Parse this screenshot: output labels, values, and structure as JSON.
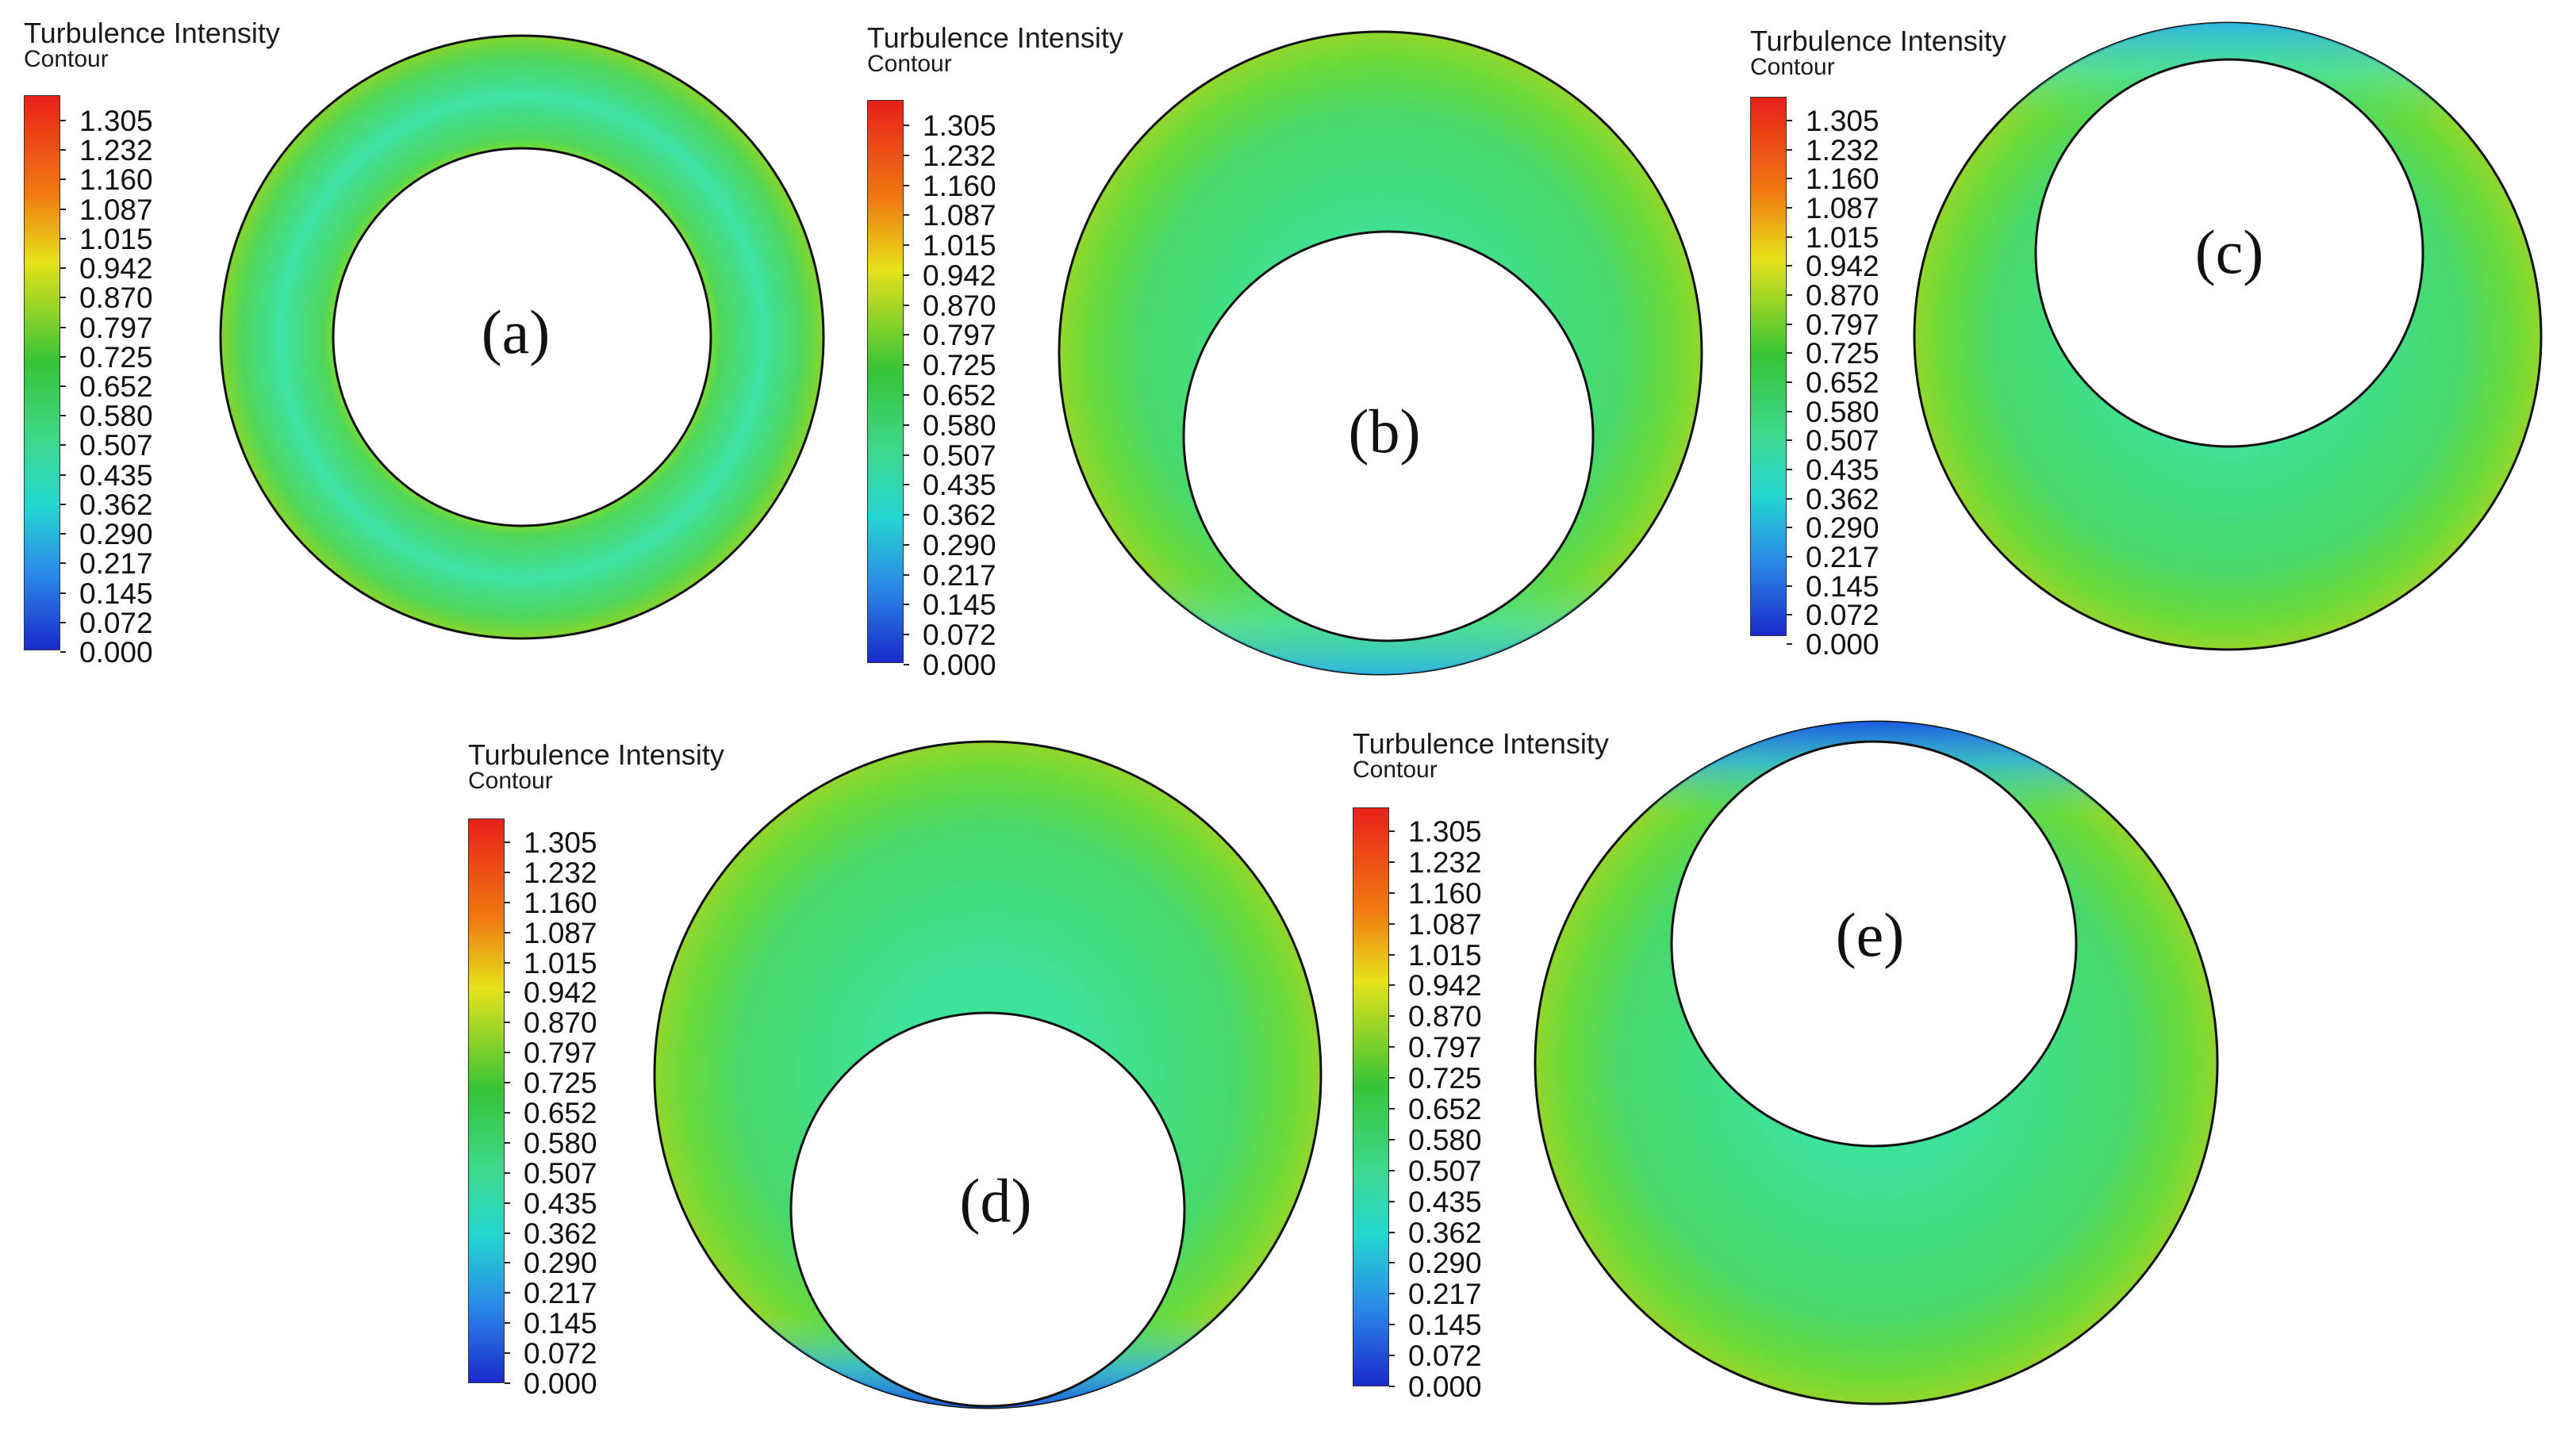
{
  "legend": {
    "title": "Turbulence Intensity",
    "subtitle": "Contour",
    "ticks": [
      "1.305",
      "1.232",
      "1.160",
      "1.087",
      "1.015",
      "0.942",
      "0.870",
      "0.797",
      "0.725",
      "0.652",
      "0.580",
      "0.507",
      "0.435",
      "0.362",
      "0.290",
      "0.217",
      "0.145",
      "0.072",
      "0.000"
    ],
    "colors": {
      "top": "#e8201a",
      "orange": "#f07c10",
      "yellow": "#e6e21a",
      "green": "#36c436",
      "cyan": "#24d6d0",
      "blue": "#1a2acc"
    }
  },
  "panels": [
    {
      "id": "a",
      "label": "(a)"
    },
    {
      "id": "b",
      "label": "(b)"
    },
    {
      "id": "c",
      "label": "(c)"
    },
    {
      "id": "d",
      "label": "(d)"
    },
    {
      "id": "e",
      "label": "(e)"
    }
  ]
}
